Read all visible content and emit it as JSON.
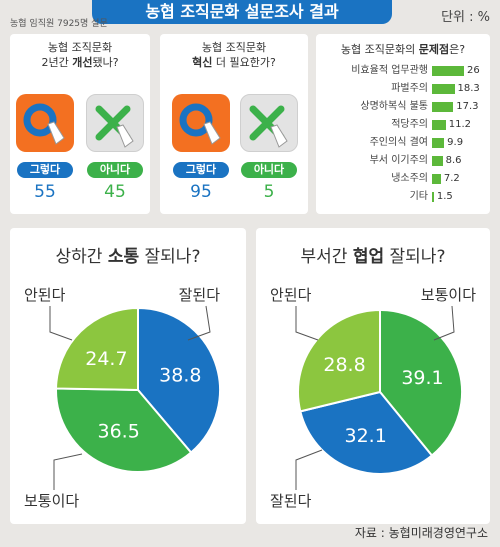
{
  "header": {
    "title": "농협 조직문화 설문조사 결과",
    "unit": "단위 : %",
    "survey_note": "농협 임직원 7925명 설문"
  },
  "q1": {
    "line1": "농협 조직문화",
    "line2_pre": "2년간 ",
    "line2_bold": "개선",
    "line2_post": "됐나?",
    "yes_label": "그렇다",
    "no_label": "아니다",
    "yes_value": "55",
    "no_value": "45"
  },
  "q2": {
    "line1": "농협 조직문화",
    "line2_bold": "혁신",
    "line2_post": " 더 필요한가?",
    "yes_label": "그렇다",
    "no_label": "아니다",
    "yes_value": "95",
    "no_value": "5"
  },
  "problems": {
    "title_pre": "농협 조직문화의 ",
    "title_bold": "문제점",
    "title_post": "은?"
  },
  "pie1": {
    "title_pre": "상하간 ",
    "title_bold": "소통",
    "title_post": " 잘되나?"
  },
  "pie2": {
    "title_pre": "부서간 ",
    "title_bold": "협업",
    "title_post": " 잘되나?"
  },
  "source": "자료 : 농협미래경영연구소",
  "colors": {
    "blue": "#1a73c2",
    "orange": "#f37021",
    "green_dark": "#3cb14a",
    "green_light": "#8cc63f",
    "bar_green": "#5cb83a"
  },
  "chart_data": [
    {
      "type": "bar",
      "categories": [
        "비효율적 업무관행",
        "파벌주의",
        "상명하복식 불통",
        "적당주의",
        "주인의식 결여",
        "부서 이기주의",
        "냉소주의",
        "기타"
      ],
      "values": [
        26,
        18.3,
        17.3,
        11.2,
        9.9,
        8.6,
        7.2,
        1.5
      ],
      "value_labels": [
        "26",
        "18.3",
        "17.3",
        "11.2",
        "9.9",
        "8.6",
        "7.2",
        "1.5"
      ],
      "orientation": "horizontal"
    },
    {
      "type": "pie",
      "categories": [
        "잘된다",
        "보통이다",
        "안된다"
      ],
      "values": [
        38.8,
        36.5,
        24.7
      ],
      "value_labels": [
        "38.8",
        "36.5",
        "24.7"
      ]
    },
    {
      "type": "pie",
      "categories": [
        "보통이다",
        "잘된다",
        "안된다"
      ],
      "values": [
        39.1,
        32.1,
        28.8
      ],
      "value_labels": [
        "39.1",
        "32.1",
        "28.8"
      ]
    }
  ]
}
